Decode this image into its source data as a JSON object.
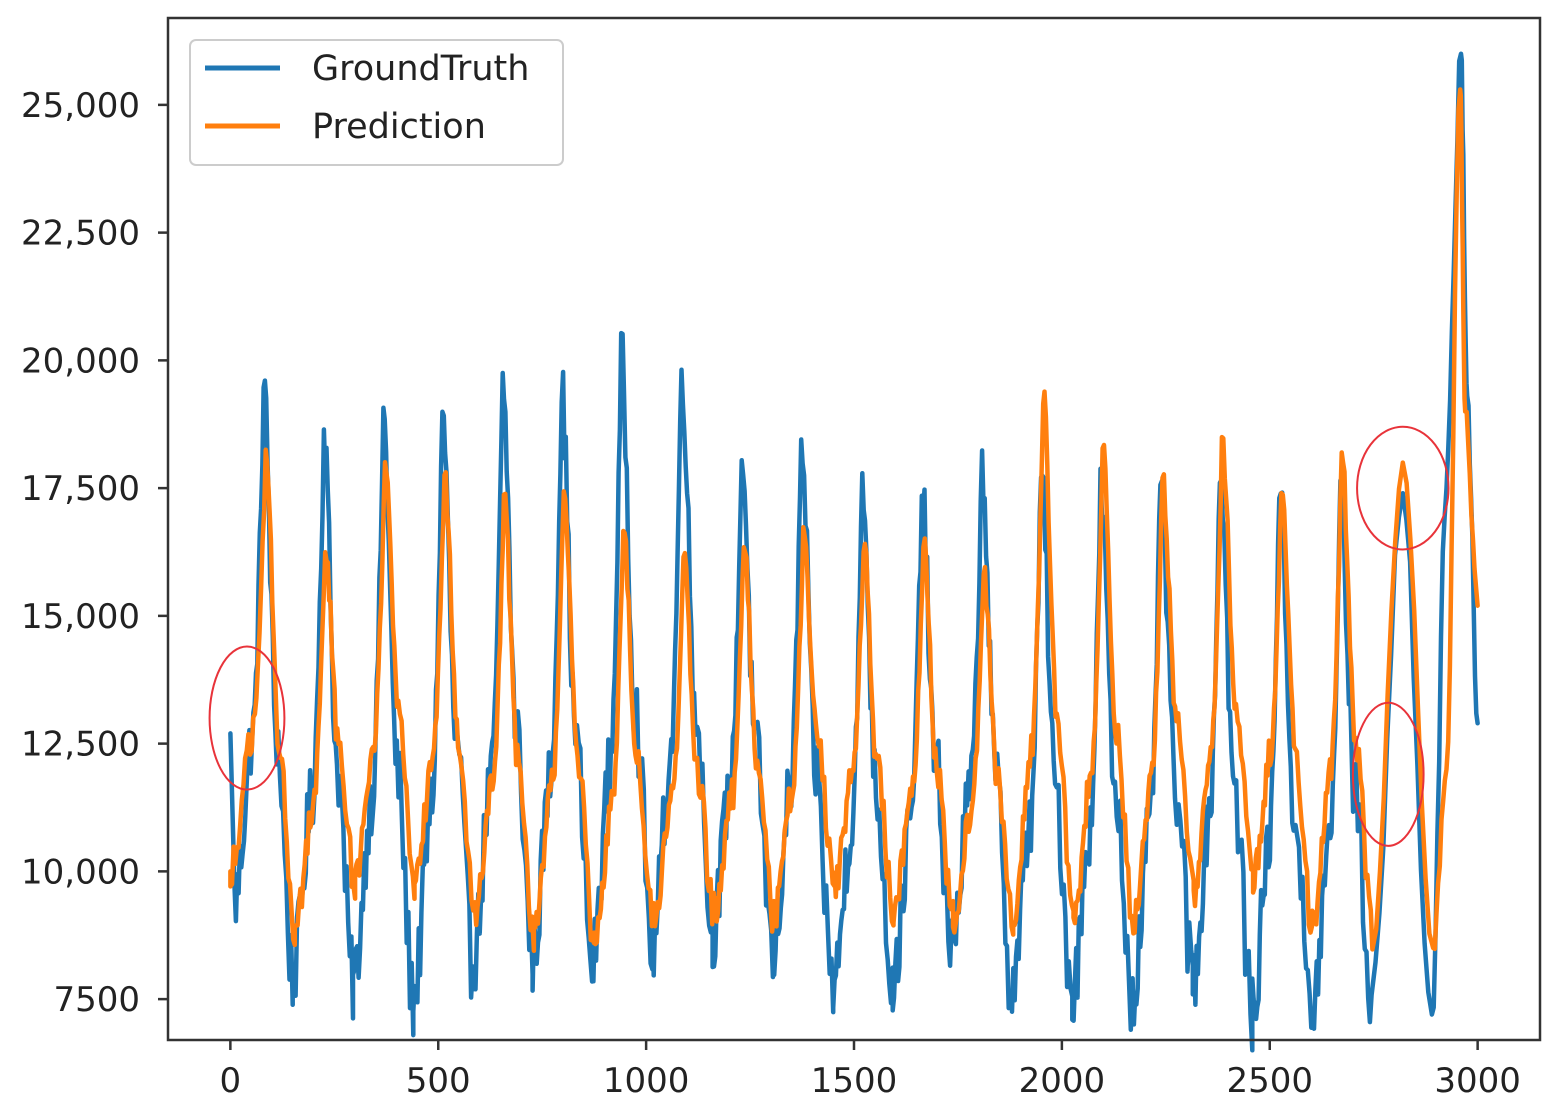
{
  "chart_data": {
    "type": "line",
    "title": "",
    "xlabel": "",
    "ylabel": "",
    "xlim": [
      -150,
      3150
    ],
    "ylim": [
      6700,
      26700
    ],
    "x_ticks": [
      0,
      500,
      1000,
      1500,
      2000,
      2500,
      3000
    ],
    "x_tick_labels": [
      "0",
      "500",
      "1000",
      "1500",
      "2000",
      "2500",
      "3000"
    ],
    "y_ticks": [
      7500,
      10000,
      12500,
      15000,
      17500,
      20000,
      22500,
      25000
    ],
    "y_tick_labels": [
      "7500",
      "10,000",
      "12,500",
      "15,000",
      "17,500",
      "20,000",
      "22,500",
      "25,000"
    ],
    "grid": false,
    "legend_position": "top-left",
    "colors": {
      "groundtruth": "#1f77b4",
      "prediction": "#ff7f0e",
      "annotation": "#e8333a"
    },
    "cycle_count": 18,
    "series": [
      {
        "name": "GroundTruth",
        "color": "#1f77b4",
        "peaks": [
          [
            80,
            19500
          ],
          [
            225,
            18600
          ],
          [
            368,
            18900
          ],
          [
            510,
            19000
          ],
          [
            655,
            19500
          ],
          [
            797,
            19400
          ],
          [
            940,
            20100
          ],
          [
            1085,
            19900
          ],
          [
            1230,
            18100
          ],
          [
            1373,
            18300
          ],
          [
            1520,
            17500
          ],
          [
            1663,
            17400
          ],
          [
            1808,
            18000
          ],
          [
            1950,
            17800
          ],
          [
            2093,
            17500
          ],
          [
            2237,
            17600
          ],
          [
            2380,
            17900
          ],
          [
            2523,
            17600
          ],
          [
            2670,
            17500
          ]
        ],
        "troughs": [
          [
            10,
            9400
          ],
          [
            150,
            8000
          ],
          [
            295,
            7800
          ],
          [
            440,
            7500
          ],
          [
            583,
            8200
          ],
          [
            727,
            8300
          ],
          [
            870,
            8200
          ],
          [
            1015,
            8500
          ],
          [
            1160,
            8800
          ],
          [
            1305,
            8400
          ],
          [
            1450,
            7700
          ],
          [
            1593,
            7800
          ],
          [
            1735,
            8600
          ],
          [
            1880,
            7700
          ],
          [
            2025,
            7600
          ],
          [
            2170,
            7600
          ],
          [
            2315,
            7900
          ],
          [
            2458,
            7200
          ],
          [
            2600,
            7100
          ],
          [
            2745,
            7600
          ],
          [
            2890,
            7200
          ]
        ],
        "tail": [
          [
            2820,
            17400
          ],
          [
            2890,
            7200
          ],
          [
            2925,
            17500
          ],
          [
            2960,
            26000
          ],
          [
            2975,
            19300
          ],
          [
            3000,
            12900
          ]
        ]
      },
      {
        "name": "Prediction",
        "color": "#ff7f0e",
        "peaks": [
          [
            85,
            18200
          ],
          [
            228,
            16400
          ],
          [
            372,
            18100
          ],
          [
            515,
            17800
          ],
          [
            658,
            17300
          ],
          [
            802,
            17600
          ],
          [
            945,
            16800
          ],
          [
            1090,
            16100
          ],
          [
            1235,
            16400
          ],
          [
            1378,
            16700
          ],
          [
            1523,
            16400
          ],
          [
            1667,
            16400
          ],
          [
            1812,
            15900
          ],
          [
            1955,
            19300
          ],
          [
            2098,
            18300
          ],
          [
            2242,
            17700
          ],
          [
            2385,
            18400
          ],
          [
            2528,
            17600
          ],
          [
            2673,
            18200
          ]
        ],
        "troughs": [
          [
            0,
            10000
          ],
          [
            155,
            8900
          ],
          [
            300,
            9800
          ],
          [
            443,
            9700
          ],
          [
            588,
            9100
          ],
          [
            730,
            8800
          ],
          [
            875,
            8600
          ],
          [
            1018,
            9100
          ],
          [
            1163,
            9200
          ],
          [
            1307,
            9100
          ],
          [
            1453,
            9700
          ],
          [
            1595,
            9200
          ],
          [
            1738,
            9100
          ],
          [
            1883,
            9100
          ],
          [
            2028,
            9000
          ],
          [
            2172,
            9000
          ],
          [
            2317,
            9600
          ],
          [
            2460,
            9800
          ],
          [
            2602,
            8900
          ],
          [
            2747,
            8800
          ],
          [
            2893,
            8500
          ]
        ],
        "tail": [
          [
            2820,
            18000
          ],
          [
            2893,
            8500
          ],
          [
            2925,
            12000
          ],
          [
            2958,
            25300
          ],
          [
            2970,
            19000
          ],
          [
            3000,
            15200
          ]
        ]
      }
    ],
    "annotations": [
      {
        "shape": "ellipse",
        "center": [
          40,
          13000
        ],
        "radius_x": 90,
        "radius_y": 1400,
        "color": "#e8333a"
      },
      {
        "shape": "ellipse",
        "center": [
          2820,
          17500
        ],
        "radius_x": 110,
        "radius_y": 1200,
        "color": "#e8333a"
      },
      {
        "shape": "ellipse",
        "center": [
          2785,
          11900
        ],
        "radius_x": 85,
        "radius_y": 1400,
        "color": "#e8333a"
      }
    ]
  }
}
